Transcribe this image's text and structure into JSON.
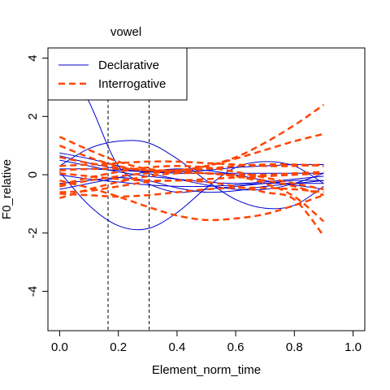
{
  "chart_data": {
    "type": "line",
    "title": "vowel",
    "xlabel": "Element_norm_time",
    "ylabel": "F0_relative",
    "xlim": [
      -0.04,
      1.04
    ],
    "ylim": [
      -5.35,
      4.35
    ],
    "x_ticks": [
      "0.0",
      "0.2",
      "0.4",
      "0.6",
      "0.8",
      "1.0"
    ],
    "x_tick_values": [
      0,
      0.2,
      0.4,
      0.6,
      0.8,
      1.0
    ],
    "y_ticks": [
      "-4",
      "-2",
      "0",
      "2",
      "4"
    ],
    "y_tick_values": [
      -4,
      -2,
      0,
      2,
      4
    ],
    "vlines": [
      0.165,
      0.305
    ],
    "grid": false,
    "legend": {
      "position": "top-left",
      "entries": [
        {
          "label": "Declarative",
          "color": "#0000cc",
          "style": "solid"
        },
        {
          "label": "Interrogative",
          "color": "#ff4500",
          "style": "dashed"
        }
      ]
    },
    "series": [
      {
        "group": "Declarative",
        "color": "#0000cc",
        "style": "solid",
        "x": [
          0,
          0.1,
          0.2,
          0.3,
          0.4,
          0.5,
          0.6,
          0.7,
          0.8,
          0.9
        ],
        "y": [
          4.3,
          2.5,
          0.3,
          -0.3,
          -0.6,
          -0.5,
          -0.4,
          -0.3,
          -0.2,
          -0.2
        ]
      },
      {
        "group": "Declarative",
        "color": "#0000cc",
        "style": "solid",
        "x": [
          0,
          0.1,
          0.2,
          0.3,
          0.4,
          0.5,
          0.6,
          0.7,
          0.8,
          0.9
        ],
        "y": [
          0.3,
          0.9,
          1.15,
          1.1,
          0.55,
          -0.2,
          -0.85,
          -1.15,
          -1.05,
          -0.4
        ]
      },
      {
        "group": "Declarative",
        "color": "#0000cc",
        "style": "solid",
        "x": [
          0,
          0.1,
          0.2,
          0.3,
          0.4,
          0.5,
          0.6,
          0.7,
          0.8,
          0.9
        ],
        "y": [
          0.1,
          -1.05,
          -1.75,
          -1.85,
          -1.3,
          -0.45,
          0.25,
          0.45,
          0.3,
          -0.3
        ]
      },
      {
        "group": "Declarative",
        "color": "#0000cc",
        "style": "solid",
        "x": [
          0,
          0.1,
          0.2,
          0.3,
          0.4,
          0.5,
          0.6,
          0.7,
          0.8,
          0.9
        ],
        "y": [
          0.75,
          0.55,
          0.3,
          0.05,
          -0.15,
          -0.35,
          -0.5,
          -0.5,
          -0.3,
          0.05
        ]
      },
      {
        "group": "Declarative",
        "color": "#0000cc",
        "style": "solid",
        "x": [
          0,
          0.1,
          0.2,
          0.3,
          0.4,
          0.5,
          0.6,
          0.7,
          0.8,
          0.9
        ],
        "y": [
          0.2,
          0.2,
          0.15,
          0.1,
          0.05,
          0.05,
          0.05,
          0.05,
          0.05,
          0.05
        ]
      },
      {
        "group": "Declarative",
        "color": "#0000cc",
        "style": "solid",
        "x": [
          0,
          0.1,
          0.2,
          0.3,
          0.4,
          0.5,
          0.6,
          0.7,
          0.8,
          0.9
        ],
        "y": [
          0.5,
          0.3,
          0.1,
          -0.05,
          -0.15,
          -0.25,
          -0.3,
          -0.25,
          -0.15,
          -0.05
        ]
      },
      {
        "group": "Declarative",
        "color": "#0000cc",
        "style": "solid",
        "x": [
          0,
          0.1,
          0.2,
          0.3,
          0.4,
          0.5,
          0.6,
          0.7,
          0.8,
          0.9
        ],
        "y": [
          -0.3,
          -0.2,
          -0.1,
          -0.2,
          -0.45,
          -0.6,
          -0.55,
          -0.4,
          -0.3,
          -0.2
        ]
      },
      {
        "group": "Declarative",
        "color": "#0000cc",
        "style": "solid",
        "x": [
          0,
          0.1,
          0.2,
          0.3,
          0.4,
          0.5,
          0.6,
          0.7,
          0.8,
          0.9
        ],
        "y": [
          0.0,
          -0.15,
          -0.25,
          -0.35,
          -0.4,
          -0.4,
          -0.35,
          -0.3,
          -0.3,
          -0.3
        ]
      },
      {
        "group": "Declarative",
        "color": "#0000cc",
        "style": "solid",
        "x": [
          0,
          0.1,
          0.2,
          0.3,
          0.4,
          0.5,
          0.6,
          0.7,
          0.8,
          0.9
        ],
        "y": [
          -0.5,
          -0.3,
          -0.1,
          0.1,
          0.2,
          0.15,
          0.0,
          -0.2,
          -0.35,
          -0.5
        ]
      },
      {
        "group": "Declarative",
        "color": "#0000cc",
        "style": "solid",
        "x": [
          0,
          0.1,
          0.2,
          0.3,
          0.4,
          0.5,
          0.6,
          0.7,
          0.8,
          0.9
        ],
        "y": [
          0.65,
          0.4,
          0.2,
          0.1,
          0.1,
          0.15,
          0.25,
          0.3,
          0.35,
          0.35
        ]
      },
      {
        "group": "Interrogative",
        "color": "#ff4500",
        "style": "dashed",
        "x": [
          0,
          0.1,
          0.2,
          0.3,
          0.4,
          0.5,
          0.6,
          0.7,
          0.8,
          0.9
        ],
        "y": [
          1.3,
          0.85,
          0.45,
          0.2,
          0.15,
          0.3,
          0.6,
          1.1,
          1.7,
          2.4
        ]
      },
      {
        "group": "Interrogative",
        "color": "#ff4500",
        "style": "dashed",
        "x": [
          0,
          0.1,
          0.2,
          0.3,
          0.4,
          0.5,
          0.6,
          0.7,
          0.8,
          0.9
        ],
        "y": [
          1.0,
          0.6,
          0.3,
          0.15,
          0.15,
          0.3,
          0.55,
          0.85,
          1.15,
          1.4
        ]
      },
      {
        "group": "Interrogative",
        "color": "#ff4500",
        "style": "dashed",
        "x": [
          0,
          0.1,
          0.2,
          0.3,
          0.4,
          0.5,
          0.6,
          0.7,
          0.8,
          0.9
        ],
        "y": [
          -0.2,
          -0.45,
          -0.75,
          -1.1,
          -1.4,
          -1.55,
          -1.5,
          -1.35,
          -1.05,
          -0.7
        ]
      },
      {
        "group": "Interrogative",
        "color": "#ff4500",
        "style": "dashed",
        "x": [
          0,
          0.1,
          0.2,
          0.3,
          0.4,
          0.5,
          0.6,
          0.7,
          0.8,
          0.9
        ],
        "y": [
          -0.6,
          -0.55,
          -0.4,
          -0.25,
          -0.2,
          -0.25,
          -0.4,
          -0.6,
          -0.85,
          -2.1
        ]
      },
      {
        "group": "Interrogative",
        "color": "#ff4500",
        "style": "dashed",
        "x": [
          0,
          0.1,
          0.2,
          0.3,
          0.4,
          0.5,
          0.6,
          0.7,
          0.8,
          0.9
        ],
        "y": [
          -0.8,
          -0.5,
          -0.25,
          -0.05,
          0.05,
          0.05,
          -0.05,
          -0.3,
          -0.75,
          -1.6
        ]
      },
      {
        "group": "Interrogative",
        "color": "#ff4500",
        "style": "dashed",
        "x": [
          0,
          0.1,
          0.2,
          0.3,
          0.4,
          0.5,
          0.6,
          0.7,
          0.8,
          0.9
        ],
        "y": [
          0.3,
          0.35,
          0.4,
          0.45,
          0.45,
          0.4,
          0.35,
          0.3,
          0.3,
          0.35
        ]
      },
      {
        "group": "Interrogative",
        "color": "#ff4500",
        "style": "dashed",
        "x": [
          0,
          0.1,
          0.2,
          0.3,
          0.4,
          0.5,
          0.6,
          0.7,
          0.8,
          0.9
        ],
        "y": [
          0.05,
          -0.05,
          -0.15,
          -0.2,
          -0.2,
          -0.15,
          -0.1,
          -0.05,
          0.0,
          0.05
        ]
      },
      {
        "group": "Interrogative",
        "color": "#ff4500",
        "style": "dashed",
        "x": [
          0,
          0.1,
          0.2,
          0.3,
          0.4,
          0.5,
          0.6,
          0.7,
          0.8,
          0.9
        ],
        "y": [
          -0.35,
          -0.1,
          0.1,
          0.25,
          0.3,
          0.25,
          0.1,
          -0.1,
          -0.3,
          -0.5
        ]
      },
      {
        "group": "Interrogative",
        "color": "#ff4500",
        "style": "dashed",
        "x": [
          0,
          0.1,
          0.2,
          0.3,
          0.4,
          0.5,
          0.6,
          0.7,
          0.8,
          0.9
        ],
        "y": [
          0.6,
          0.4,
          0.25,
          0.15,
          0.15,
          0.2,
          0.3,
          0.35,
          0.35,
          0.3
        ]
      },
      {
        "group": "Interrogative",
        "color": "#ff4500",
        "style": "dashed",
        "x": [
          0,
          0.1,
          0.2,
          0.3,
          0.4,
          0.5,
          0.6,
          0.7,
          0.8,
          0.9
        ],
        "y": [
          -0.65,
          -0.7,
          -0.75,
          -0.7,
          -0.6,
          -0.5,
          -0.45,
          -0.45,
          -0.5,
          -0.6
        ]
      },
      {
        "group": "Interrogative",
        "color": "#ff4500",
        "style": "dashed",
        "x": [
          0,
          0.1,
          0.2,
          0.3,
          0.4,
          0.5,
          0.6,
          0.7,
          0.8,
          0.9
        ],
        "y": [
          -0.4,
          -0.2,
          -0.05,
          0.05,
          0.1,
          0.05,
          -0.05,
          -0.2,
          -0.4,
          -0.7
        ]
      },
      {
        "group": "Interrogative",
        "color": "#ff4500",
        "style": "dashed",
        "x": [
          0,
          0.1,
          0.2,
          0.3,
          0.4,
          0.5,
          0.6,
          0.7,
          0.8,
          0.9
        ],
        "y": [
          0.15,
          0.2,
          0.2,
          0.15,
          0.1,
          0.05,
          0.0,
          0.0,
          0.05,
          0.1
        ]
      }
    ]
  }
}
